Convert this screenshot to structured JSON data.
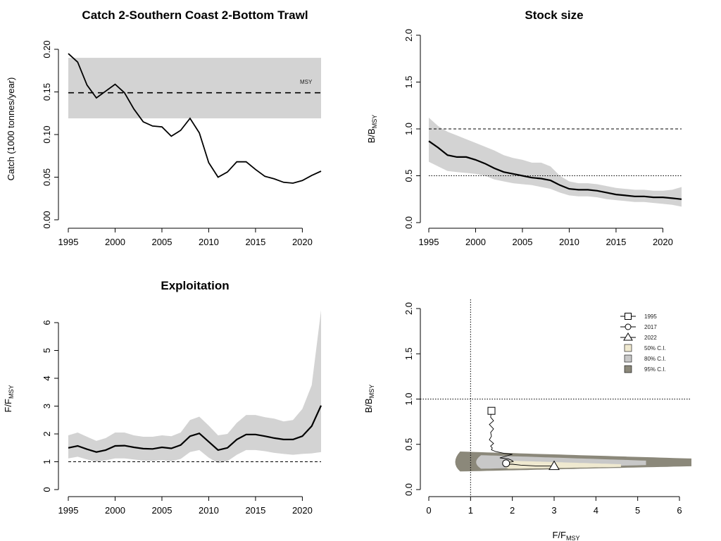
{
  "chart_data": [
    {
      "type": "line",
      "title": "Catch 2-Southern Coast 2-Bottom Trawl",
      "xlabel": "",
      "ylabel": "Catch (1000 tonnes/year)",
      "xlim": [
        1995,
        2022
      ],
      "ylim": [
        0,
        0.2
      ],
      "x_ticks": [
        "1995",
        "2000",
        "2005",
        "2010",
        "2015",
        "2020"
      ],
      "y_ticks": [
        "0.00",
        "0.05",
        "0.10",
        "0.15",
        "0.20"
      ],
      "reference": {
        "label": "MSY",
        "value": 0.149,
        "band": [
          0.119,
          0.19
        ],
        "style": "dashed"
      },
      "series": [
        {
          "x": [
            1995,
            1996,
            1997,
            1998,
            1999,
            2000,
            2001,
            2002,
            2003,
            2004,
            2005,
            2006,
            2007,
            2008,
            2009,
            2010,
            2011,
            2012,
            2013,
            2014,
            2015,
            2016,
            2017,
            2018,
            2019,
            2020,
            2021,
            2022
          ],
          "values": [
            0.195,
            0.185,
            0.158,
            0.143,
            0.151,
            0.159,
            0.149,
            0.13,
            0.115,
            0.11,
            0.109,
            0.098,
            0.105,
            0.119,
            0.102,
            0.067,
            0.05,
            0.056,
            0.068,
            0.068,
            0.059,
            0.051,
            0.048,
            0.044,
            0.043,
            0.046,
            0.052,
            0.057
          ]
        }
      ]
    },
    {
      "type": "line",
      "title": "Stock size",
      "xlabel": "",
      "ylabel": "B/B",
      "ylabel_sub": "MSY",
      "xlim": [
        1995,
        2022
      ],
      "ylim": [
        0,
        2
      ],
      "x_ticks": [
        "1995",
        "2000",
        "2005",
        "2010",
        "2015",
        "2020"
      ],
      "y_ticks": [
        "0.0",
        "0.5",
        "1.0",
        "1.5",
        "2.0"
      ],
      "ref_lines": [
        {
          "value": 1.0,
          "style": "dashed"
        },
        {
          "value": 0.5,
          "style": "dotted"
        }
      ],
      "series": [
        {
          "x": [
            1995,
            1996,
            1997,
            1998,
            1999,
            2000,
            2001,
            2002,
            2003,
            2004,
            2005,
            2006,
            2007,
            2008,
            2009,
            2010,
            2011,
            2012,
            2013,
            2014,
            2015,
            2016,
            2017,
            2018,
            2019,
            2020,
            2021,
            2022
          ],
          "values": [
            0.87,
            0.8,
            0.72,
            0.7,
            0.7,
            0.67,
            0.63,
            0.58,
            0.54,
            0.52,
            0.5,
            0.48,
            0.47,
            0.45,
            0.4,
            0.36,
            0.35,
            0.35,
            0.34,
            0.32,
            0.3,
            0.29,
            0.28,
            0.28,
            0.27,
            0.27,
            0.26,
            0.25
          ],
          "lower": [
            0.65,
            0.6,
            0.55,
            0.54,
            0.53,
            0.52,
            0.5,
            0.46,
            0.44,
            0.42,
            0.41,
            0.4,
            0.38,
            0.36,
            0.32,
            0.29,
            0.28,
            0.28,
            0.27,
            0.25,
            0.24,
            0.23,
            0.22,
            0.22,
            0.21,
            0.2,
            0.19,
            0.17
          ],
          "upper": [
            1.12,
            1.03,
            0.97,
            0.93,
            0.89,
            0.85,
            0.81,
            0.77,
            0.72,
            0.69,
            0.67,
            0.64,
            0.64,
            0.6,
            0.5,
            0.44,
            0.42,
            0.42,
            0.41,
            0.39,
            0.37,
            0.36,
            0.35,
            0.35,
            0.34,
            0.34,
            0.35,
            0.38
          ]
        }
      ]
    },
    {
      "type": "line",
      "title": "Exploitation",
      "xlabel": "",
      "ylabel": "F/F",
      "ylabel_sub": "MSY",
      "xlim": [
        1995,
        2022
      ],
      "ylim": [
        0,
        6.5
      ],
      "x_ticks": [
        "1995",
        "2000",
        "2005",
        "2010",
        "2015",
        "2020"
      ],
      "y_ticks": [
        "0",
        "1",
        "2",
        "3",
        "4",
        "5",
        "6"
      ],
      "ref_lines": [
        {
          "value": 1.0,
          "style": "dashed"
        }
      ],
      "series": [
        {
          "x": [
            1995,
            1996,
            1997,
            1998,
            1999,
            2000,
            2001,
            2002,
            2003,
            2004,
            2005,
            2006,
            2007,
            2008,
            2009,
            2010,
            2011,
            2012,
            2013,
            2014,
            2015,
            2016,
            2017,
            2018,
            2019,
            2020,
            2021,
            2022
          ],
          "values": [
            1.5,
            1.57,
            1.45,
            1.35,
            1.42,
            1.57,
            1.58,
            1.52,
            1.47,
            1.46,
            1.52,
            1.48,
            1.6,
            1.92,
            2.02,
            1.72,
            1.42,
            1.5,
            1.8,
            1.98,
            1.98,
            1.92,
            1.85,
            1.8,
            1.8,
            1.92,
            2.28,
            3.02
          ],
          "lower": [
            1.12,
            1.18,
            1.08,
            1.0,
            1.05,
            1.12,
            1.12,
            1.08,
            1.04,
            1.03,
            1.06,
            1.02,
            1.1,
            1.35,
            1.42,
            1.15,
            0.95,
            1.02,
            1.25,
            1.42,
            1.42,
            1.38,
            1.32,
            1.28,
            1.25,
            1.28,
            1.3,
            1.35
          ],
          "upper": [
            1.95,
            2.05,
            1.9,
            1.75,
            1.85,
            2.05,
            2.05,
            1.95,
            1.9,
            1.9,
            1.95,
            1.92,
            2.05,
            2.5,
            2.62,
            2.3,
            1.95,
            2.0,
            2.4,
            2.68,
            2.68,
            2.6,
            2.55,
            2.45,
            2.5,
            2.9,
            3.75,
            6.45
          ]
        }
      ]
    },
    {
      "type": "scatter",
      "title": "",
      "xlabel": "F/F",
      "xlabel_sub": "MSY",
      "ylabel": "B/B",
      "ylabel_sub": "MSY",
      "xlim": [
        0,
        6.3
      ],
      "ylim": [
        0,
        2
      ],
      "x_ticks": [
        "0",
        "1",
        "2",
        "3",
        "4",
        "5",
        "6"
      ],
      "y_ticks": [
        "0.0",
        "0.5",
        "1.0",
        "1.5",
        "2.0"
      ],
      "ref_lines": [
        {
          "axis": "x",
          "value": 1.0,
          "style": "dotted"
        },
        {
          "axis": "y",
          "value": 1.0,
          "style": "dotted"
        }
      ],
      "trajectory": {
        "x": [
          1.5,
          1.48,
          1.55,
          1.45,
          1.55,
          1.48,
          1.5,
          1.45,
          1.55,
          1.48,
          1.52,
          1.5,
          1.6,
          1.8,
          2.0,
          1.85,
          1.7,
          1.9,
          1.95,
          2.0,
          2.02,
          1.9,
          1.85,
          1.8,
          2.0,
          2.2,
          2.6,
          3.0
        ],
        "y": [
          0.87,
          0.8,
          0.76,
          0.72,
          0.67,
          0.63,
          0.59,
          0.55,
          0.51,
          0.48,
          0.46,
          0.44,
          0.42,
          0.4,
          0.39,
          0.37,
          0.35,
          0.34,
          0.33,
          0.32,
          0.31,
          0.3,
          0.29,
          0.28,
          0.28,
          0.27,
          0.26,
          0.26
        ]
      },
      "markers": [
        {
          "label": "1995",
          "symbol": "square",
          "x": 1.5,
          "y": 0.87
        },
        {
          "label": "2017",
          "symbol": "circle",
          "x": 1.85,
          "y": 0.29
        },
        {
          "label": "2022",
          "symbol": "triangle",
          "x": 3.0,
          "y": 0.26
        }
      ],
      "regions": [
        {
          "label": "50% C.I.",
          "color": "#efe9d0"
        },
        {
          "label": "80% C.I.",
          "color": "#c8c8c8"
        },
        {
          "label": "95% C.I.",
          "color": "#8b887a"
        }
      ],
      "legend_position": "top-right"
    }
  ]
}
